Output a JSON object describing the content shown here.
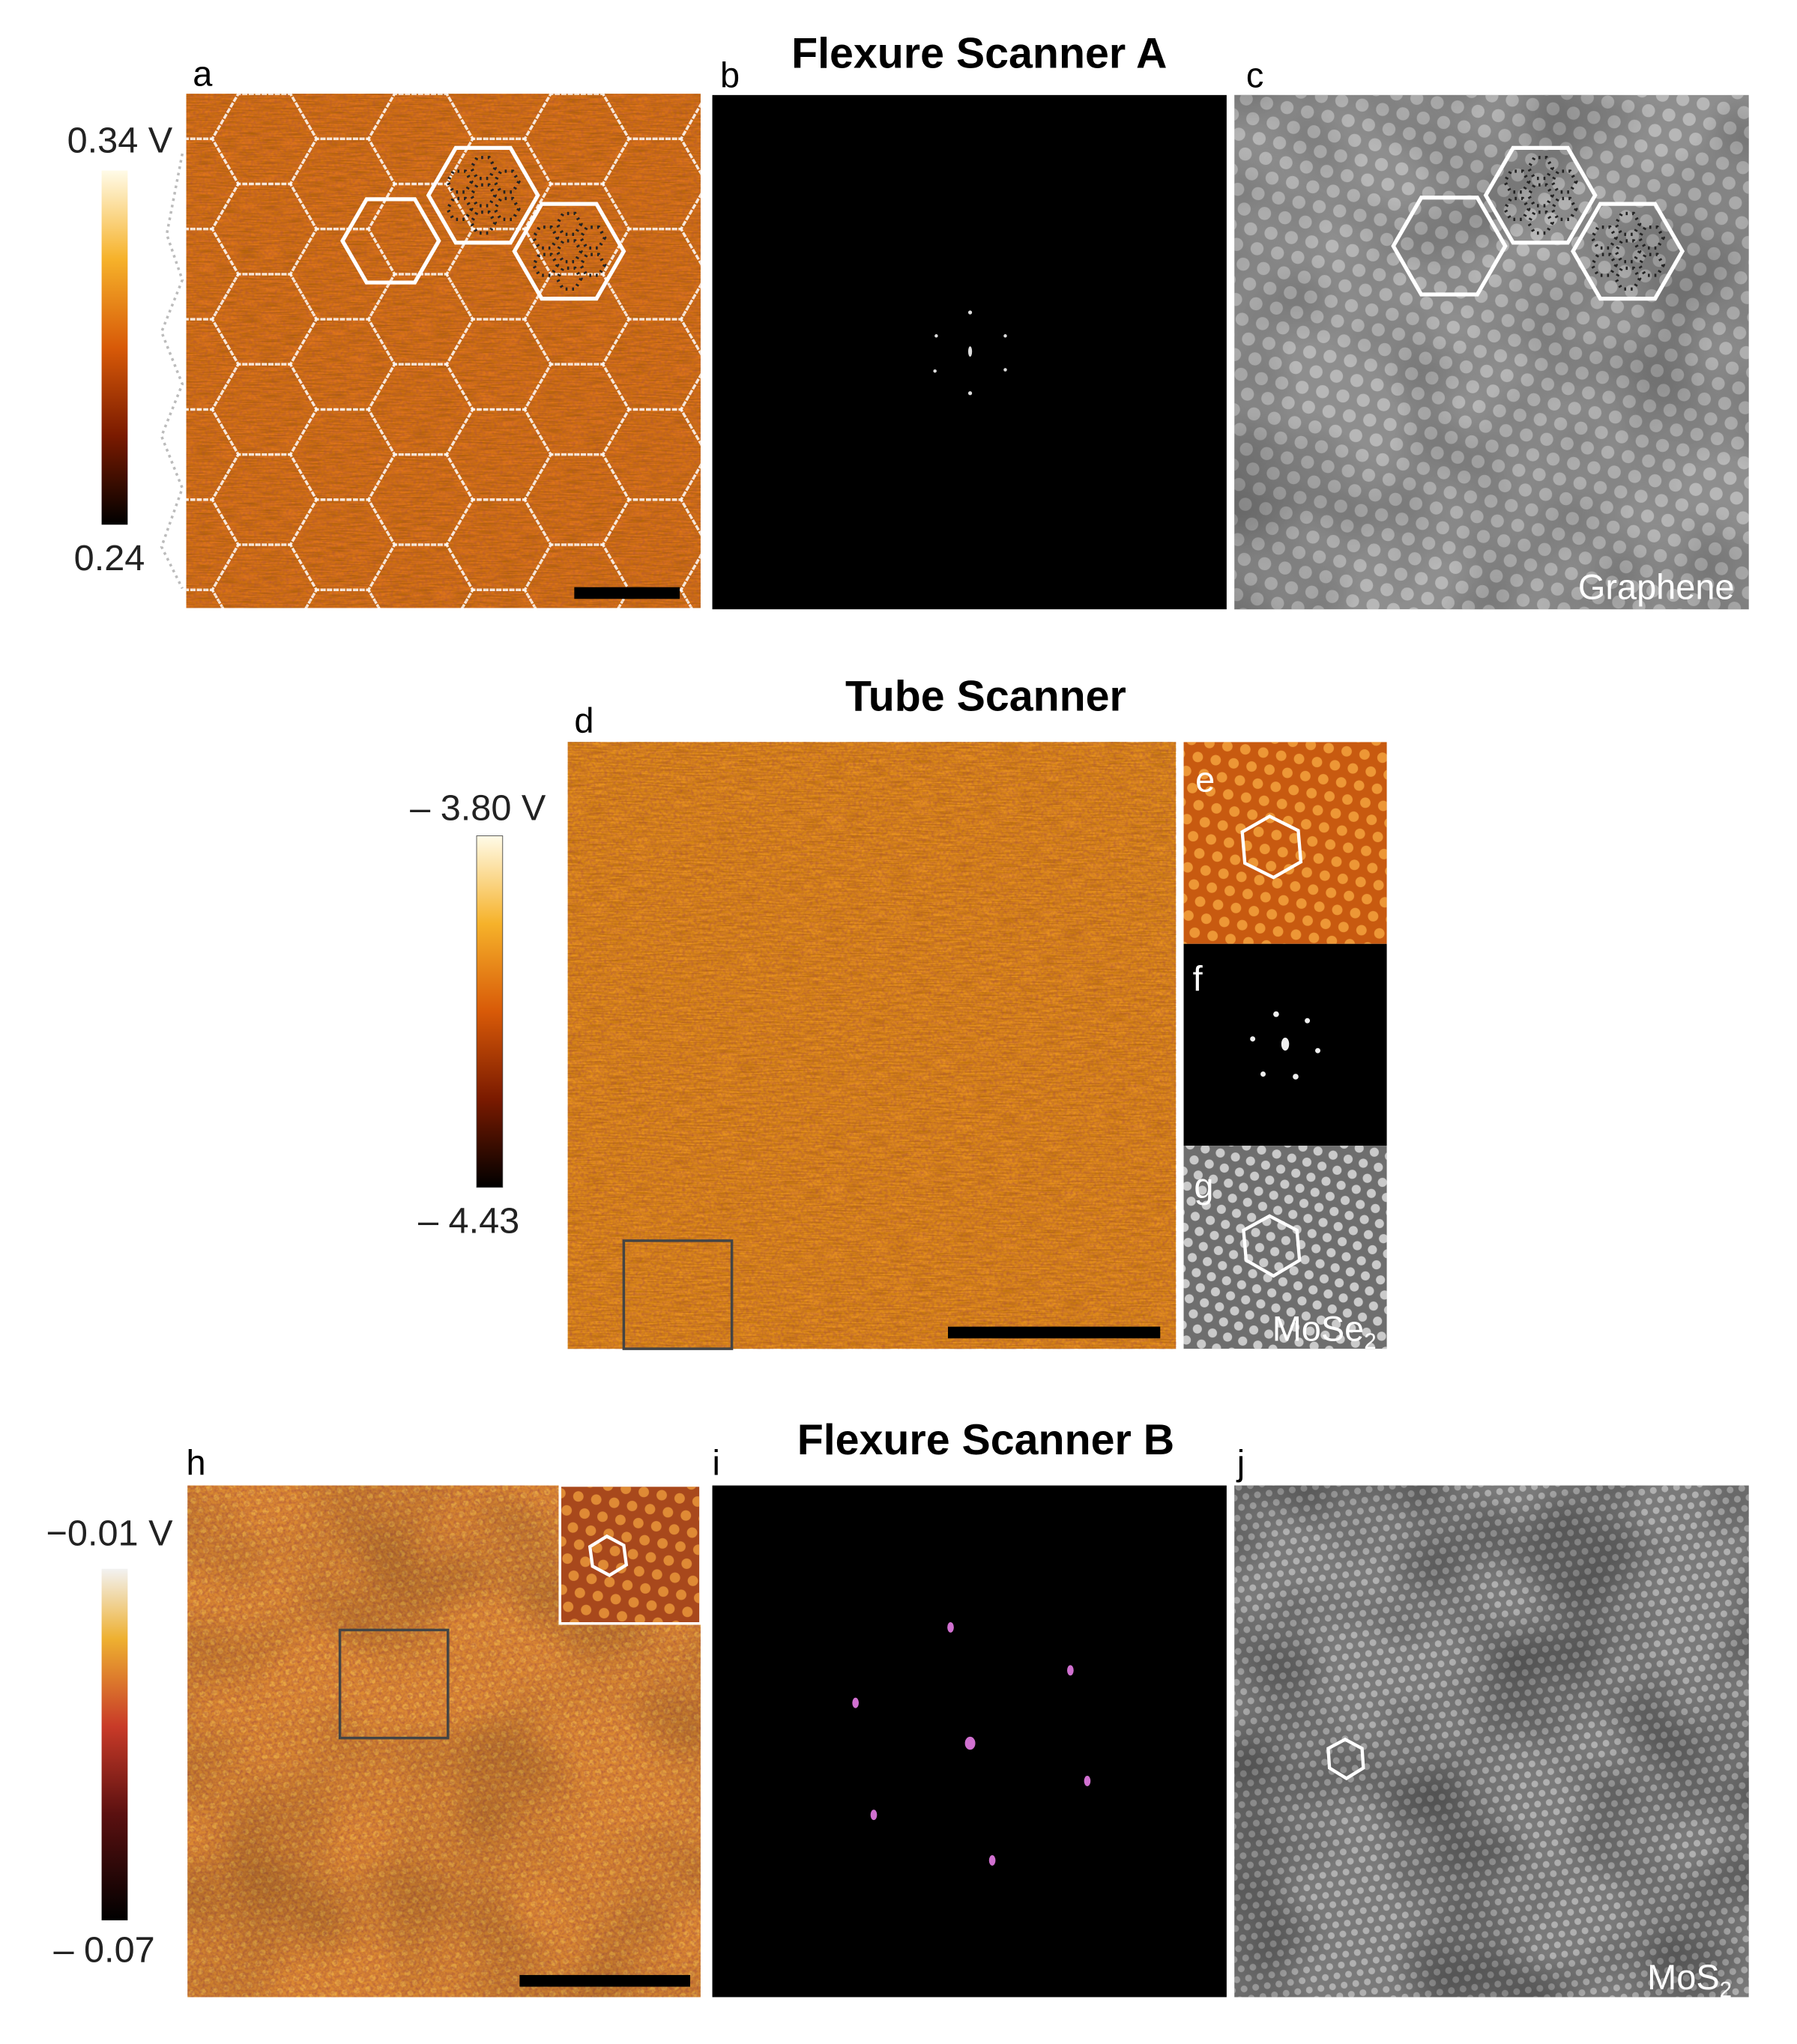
{
  "sections": [
    {
      "title": "Flexure Scanner A",
      "colorbar": {
        "max": "0.34 V",
        "min": "0.24"
      },
      "panels": [
        {
          "label": "a"
        },
        {
          "label": "b"
        },
        {
          "label": "c",
          "material": "Graphene"
        }
      ]
    },
    {
      "title": "Tube Scanner",
      "colorbar": {
        "max": "– 3.80 V",
        "min": "– 4.43"
      },
      "panels": [
        {
          "label": "d"
        },
        {
          "label": "e"
        },
        {
          "label": "f"
        },
        {
          "label": "g",
          "material": {
            "text": "MoSe",
            "sub": "2"
          }
        }
      ]
    },
    {
      "title": "Flexure Scanner B",
      "colorbar": {
        "max": "−0.01 V",
        "min": "– 0.07"
      },
      "panels": [
        {
          "label": "h"
        },
        {
          "label": "i"
        },
        {
          "label": "j",
          "material": {
            "text": "MoS",
            "sub": "2"
          }
        }
      ]
    }
  ]
}
